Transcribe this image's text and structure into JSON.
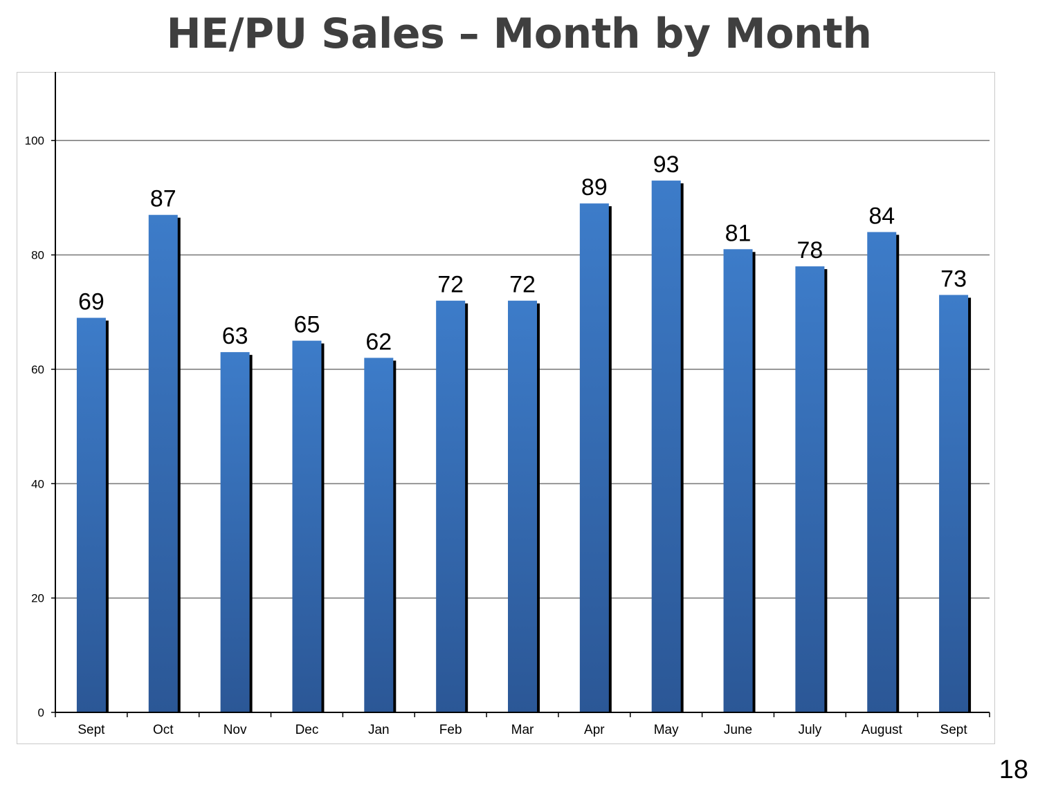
{
  "slide": {
    "title": "HE/PU Sales – Month by Month",
    "page_number": "18"
  },
  "colors": {
    "bar_top": "#3d7cc9",
    "bar_bottom": "#2b5796",
    "bar_shadow": "#000000",
    "gridline": "#7f7f7f",
    "axis": "#000000",
    "frame": "#c9c9c9"
  },
  "chart_data": {
    "type": "bar",
    "title": "",
    "xlabel": "",
    "ylabel": "",
    "categories": [
      "Sept",
      "Oct",
      "Nov",
      "Dec",
      "Jan",
      "Feb",
      "Mar",
      "Apr",
      "May",
      "June",
      "July",
      "August",
      "Sept"
    ],
    "values": [
      69,
      87,
      63,
      65,
      62,
      72,
      72,
      89,
      93,
      81,
      78,
      84,
      73
    ],
    "ylim": [
      0,
      112
    ],
    "yticks": [
      0,
      20,
      40,
      60,
      80,
      100
    ],
    "grid": true,
    "legend": "none",
    "data_labels": true
  }
}
